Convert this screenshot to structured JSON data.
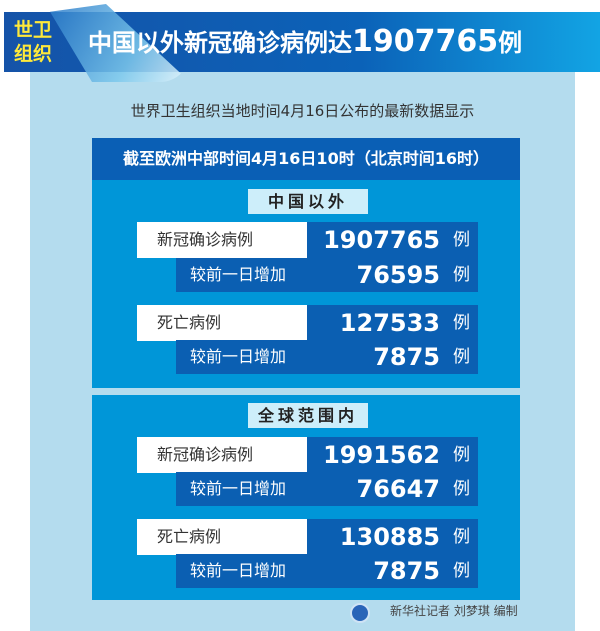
{
  "header": {
    "badge_line1": "世卫",
    "badge_line2": "组织",
    "title_prefix": "中国以外新冠确诊病例达",
    "title_number": "1907765",
    "title_suffix": "例"
  },
  "subtitle": "世界卫生组织当地时间4月16日公布的最新数据显示",
  "time_bar": "截至欧洲中部时间4月16日10时（北京时间16时）",
  "unit": "例",
  "sections": [
    {
      "label": "中国以外",
      "rows": [
        {
          "label": "新冠确诊病例",
          "value": "1907765"
        },
        {
          "label": "较前一日增加",
          "value": "76595"
        },
        {
          "label": "死亡病例",
          "value": "127533"
        },
        {
          "label": "较前一日增加",
          "value": "7875"
        }
      ]
    },
    {
      "label": "全球范围内",
      "rows": [
        {
          "label": "新冠确诊病例",
          "value": "1991562"
        },
        {
          "label": "较前一日增加",
          "value": "76647"
        },
        {
          "label": "死亡病例",
          "value": "130885"
        },
        {
          "label": "较前一日增加",
          "value": "7875"
        }
      ]
    }
  ],
  "footer": "新华社记者 刘梦琪 编制",
  "colors": {
    "dark_blue": "#0b5fb2",
    "section_blue": "#0096d8",
    "panel": "#b4dcee",
    "badge_text": "#ffe93a"
  }
}
